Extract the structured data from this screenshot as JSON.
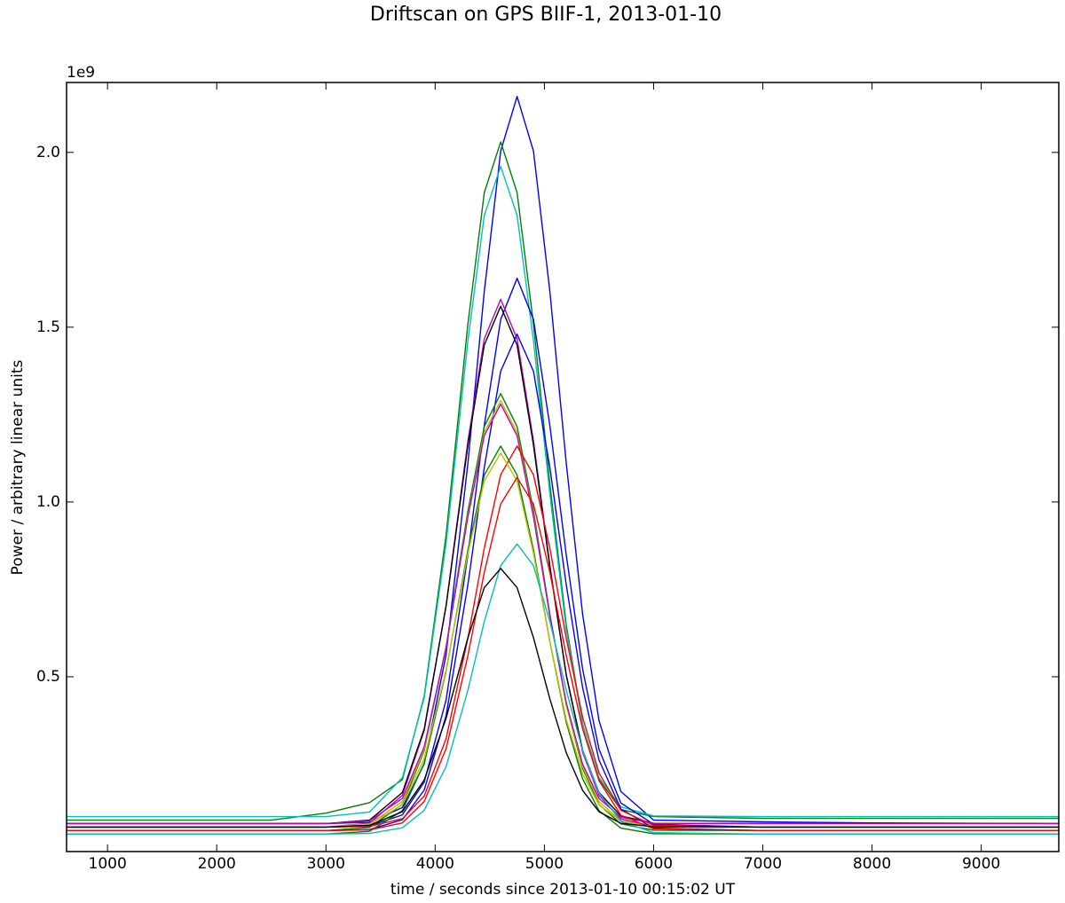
{
  "chart_data": {
    "type": "line",
    "title": "Driftscan on GPS BIIF-1, 2013-01-10",
    "xlabel": "time / seconds since 2013-01-10 00:15:02 UT",
    "ylabel": "Power / arbitrary linear units",
    "y_offset_label": "1e9",
    "x": [
      625,
      1500,
      2500,
      3000,
      3400,
      3700,
      3900,
      4100,
      4300,
      4450,
      4600,
      4750,
      4900,
      5050,
      5200,
      5350,
      5500,
      5700,
      6000,
      7000,
      8000,
      9710
    ],
    "xlim": [
      625,
      9710
    ],
    "xticks": [
      1000,
      2000,
      3000,
      4000,
      5000,
      6000,
      7000,
      8000,
      9000
    ],
    "ylim": [
      0,
      2.2
    ],
    "yticks": [
      0.5,
      {
        "value": 1,
        "label": "1.0"
      },
      1.5,
      {
        "value": 2,
        "label": "2.0"
      }
    ],
    "grid": false,
    "series": [
      {
        "color": "#0000ff",
        "values": [
          0.08,
          0.08,
          0.08,
          0.08,
          0.084,
          0.126,
          0.251,
          0.563,
          1.112,
          1.603,
          2.004,
          2.16,
          2.004,
          1.603,
          1.112,
          0.679,
          0.375,
          0.172,
          0.09,
          0.085,
          0.082,
          0.08
        ]
      },
      {
        "color": "#008000",
        "values": [
          0.09,
          0.09,
          0.09,
          0.11,
          0.14,
          0.206,
          0.445,
          0.905,
          1.51,
          1.885,
          2.03,
          1.885,
          1.51,
          1.052,
          0.649,
          0.365,
          0.206,
          0.12,
          0.1,
          0.095,
          0.095,
          0.095
        ]
      },
      {
        "color": "#00bfbf",
        "values": [
          0.1,
          0.1,
          0.1,
          0.1,
          0.113,
          0.212,
          0.44,
          0.881,
          1.462,
          1.82,
          1.96,
          1.82,
          1.462,
          1.023,
          0.636,
          0.364,
          0.212,
          0.128,
          0.102,
          0.1,
          0.1,
          0.1
        ]
      },
      {
        "color": "#0000ff",
        "values": [
          0.07,
          0.07,
          0.07,
          0.07,
          0.073,
          0.105,
          0.199,
          0.434,
          0.849,
          1.219,
          1.522,
          1.64,
          1.522,
          1.219,
          0.849,
          0.522,
          0.293,
          0.139,
          0.078,
          0.07,
          0.07,
          0.07
        ]
      },
      {
        "color": "#bf00bf",
        "values": [
          0.07,
          0.07,
          0.07,
          0.07,
          0.081,
          0.161,
          0.346,
          0.704,
          1.175,
          1.467,
          1.58,
          1.467,
          1.175,
          0.819,
          0.505,
          0.284,
          0.161,
          0.093,
          0.072,
          0.07,
          0.07,
          0.07
        ]
      },
      {
        "color": "#000000",
        "values": [
          0.08,
          0.08,
          0.08,
          0.08,
          0.09,
          0.169,
          0.351,
          0.702,
          1.163,
          1.449,
          1.56,
          1.449,
          1.163,
          0.814,
          0.506,
          0.29,
          0.169,
          0.102,
          0.081,
          0.08,
          0.08,
          0.08
        ]
      },
      {
        "color": "#0000ff",
        "values": [
          0.06,
          0.06,
          0.06,
          0.06,
          0.063,
          0.091,
          0.176,
          0.389,
          0.764,
          1.099,
          1.374,
          1.48,
          1.374,
          1.099,
          0.764,
          0.469,
          0.262,
          0.122,
          0.067,
          0.06,
          0.06,
          0.06
        ]
      },
      {
        "color": "#008000",
        "values": [
          0.06,
          0.06,
          0.06,
          0.06,
          0.069,
          0.135,
          0.289,
          0.585,
          0.975,
          1.216,
          1.31,
          1.216,
          0.975,
          0.68,
          0.42,
          0.238,
          0.135,
          0.079,
          0.061,
          0.06,
          0.06,
          0.06
        ]
      },
      {
        "color": "#bfbf00",
        "values": [
          0.07,
          0.07,
          0.07,
          0.07,
          0.079,
          0.143,
          0.293,
          0.582,
          0.963,
          1.199,
          1.29,
          1.199,
          0.963,
          0.675,
          0.421,
          0.243,
          0.143,
          0.088,
          0.071,
          0.07,
          0.07,
          0.07
        ]
      },
      {
        "color": "#bf00bf",
        "values": [
          0.08,
          0.08,
          0.08,
          0.08,
          0.088,
          0.152,
          0.3,
          0.584,
          0.958,
          1.19,
          1.28,
          1.19,
          0.958,
          0.675,
          0.426,
          0.25,
          0.152,
          0.098,
          0.081,
          0.08,
          0.08,
          0.08
        ]
      },
      {
        "color": "#008000",
        "values": [
          0.05,
          0.05,
          0.05,
          0.05,
          0.058,
          0.117,
          0.253,
          0.516,
          0.863,
          1.077,
          1.16,
          1.077,
          0.863,
          0.601,
          0.37,
          0.208,
          0.117,
          0.067,
          0.051,
          0.05,
          0.05,
          0.05
        ]
      },
      {
        "color": "#ff0000",
        "values": [
          0.07,
          0.07,
          0.07,
          0.07,
          0.072,
          0.094,
          0.159,
          0.323,
          0.611,
          0.868,
          1.078,
          1.16,
          1.078,
          0.868,
          0.611,
          0.384,
          0.225,
          0.118,
          0.075,
          0.07,
          0.07,
          0.07
        ]
      },
      {
        "color": "#bfbf00",
        "values": [
          0.07,
          0.07,
          0.07,
          0.07,
          0.077,
          0.134,
          0.266,
          0.519,
          0.853,
          1.06,
          1.14,
          1.06,
          0.853,
          0.601,
          0.378,
          0.222,
          0.134,
          0.086,
          0.071,
          0.07,
          0.07,
          0.07
        ]
      },
      {
        "color": "#ff0000",
        "values": [
          0.06,
          0.06,
          0.06,
          0.06,
          0.062,
          0.082,
          0.143,
          0.294,
          0.561,
          0.799,
          0.994,
          1.07,
          0.994,
          0.799,
          0.561,
          0.351,
          0.203,
          0.104,
          0.065,
          0.06,
          0.06,
          0.06
        ]
      },
      {
        "color": "#00bfbf",
        "values": [
          0.05,
          0.05,
          0.05,
          0.05,
          0.052,
          0.068,
          0.118,
          0.243,
          0.462,
          0.658,
          0.818,
          0.88,
          0.818,
          0.658,
          0.462,
          0.289,
          0.168,
          0.087,
          0.054,
          0.05,
          0.05,
          0.05
        ]
      },
      {
        "color": "#000000",
        "values": [
          0.07,
          0.07,
          0.07,
          0.07,
          0.075,
          0.114,
          0.205,
          0.381,
          0.612,
          0.755,
          0.81,
          0.755,
          0.612,
          0.437,
          0.283,
          0.175,
          0.114,
          0.081,
          0.071,
          0.07,
          0.07,
          0.07
        ]
      }
    ]
  }
}
